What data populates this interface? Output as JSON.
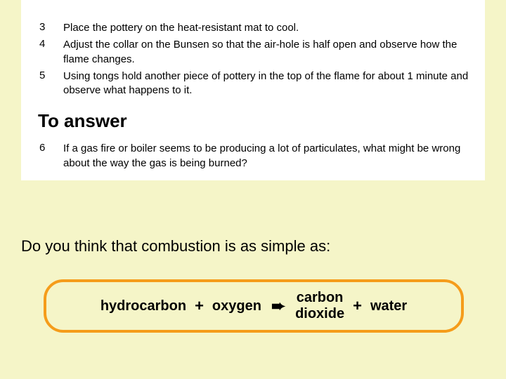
{
  "colors": {
    "page_bg": "#f5f5c8",
    "box_bg": "#ffffff",
    "text": "#000000",
    "equation_border": "#f59c1a"
  },
  "items": [
    {
      "num": "3",
      "text": "Place the pottery on the heat-resistant mat to cool."
    },
    {
      "num": "4",
      "text": "Adjust the collar on the Bunsen so that the air-hole is half open and observe how the flame changes."
    },
    {
      "num": "5",
      "text": "Using tongs hold another piece of pottery in the top of the flame for about 1 minute and observe what happens to it."
    }
  ],
  "section_title": "To answer",
  "answer_items": [
    {
      "num": "6",
      "text": "If a gas fire or boiler seems to be producing a lot of particulates, what might be wrong about the way the gas is being burned?"
    }
  ],
  "question": "Do you think that combustion is as simple as:",
  "equation": {
    "term1": "hydrocarbon",
    "op1": "+",
    "term2": "oxygen",
    "arrow": "➨",
    "term3_line1": "carbon",
    "term3_line2": "dioxide",
    "op2": "+",
    "term4": "water",
    "border_color": "#f59c1a",
    "border_width": 4,
    "border_radius": 28,
    "font_size": 20,
    "font_weight": "bold"
  }
}
